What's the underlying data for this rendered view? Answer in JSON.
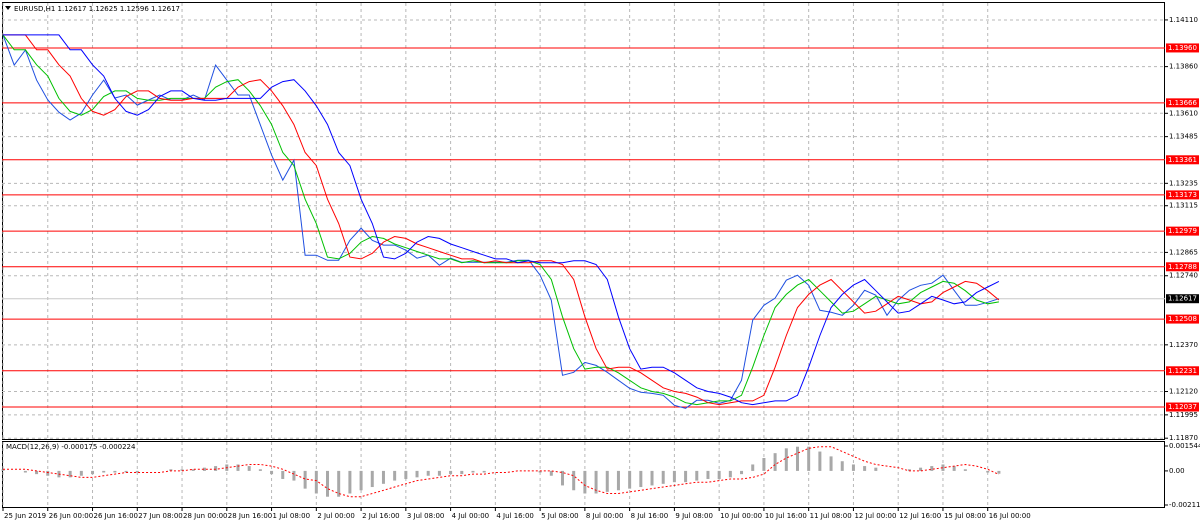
{
  "chart_data": [
    {
      "type": "line",
      "title": "EURUSD,H1  1.12617 1.12625 1.12596 1.12617",
      "categories": [
        "25 Jun 2019",
        null,
        null,
        null,
        "26 Jun 00:00",
        null,
        null,
        null,
        "26 Jun 16:00",
        null,
        null,
        null,
        "27 Jun 08:00",
        null,
        null,
        null,
        "28 Jun 00:00",
        null,
        null,
        null,
        "28 Jun 16:00",
        null,
        null,
        null,
        "1 Jul 08:00",
        null,
        null,
        null,
        "2 Jul 00:00",
        null,
        null,
        null,
        "2 Jul 16:00",
        null,
        null,
        null,
        "3 Jul 08:00",
        null,
        null,
        null,
        "4 Jul 00:00",
        null,
        null,
        null,
        "4 Jul 16:00",
        null,
        null,
        null,
        "5 Jul 08:00",
        null,
        null,
        null,
        "8 Jul 00:00",
        null,
        null,
        null,
        "8 Jul 16:00",
        null,
        null,
        null,
        "9 Jul 08:00",
        null,
        null,
        null,
        "10 Jul 00:00",
        null,
        null,
        null,
        "10 Jul 16:00",
        null,
        null,
        null,
        "11 Jul 08:00",
        null,
        null,
        null,
        "12 Jul 00:00",
        null,
        null,
        null,
        "12 Jul 16:00",
        null,
        null,
        null,
        "15 Jul 08:00",
        null,
        null,
        null,
        "16 Jul 00:00",
        null
      ],
      "series": [
        {
          "color": "#1f4fe0",
          "values": [
            1.14029,
            1.13868,
            1.13949,
            1.13788,
            1.13681,
            1.13616,
            1.13574,
            1.13611,
            1.13708,
            1.13788,
            1.13692,
            1.13708,
            1.13654,
            1.13681,
            1.13708,
            1.13681,
            1.13681,
            1.13708,
            1.13681,
            1.13868,
            1.13788,
            1.13708,
            1.13708,
            1.13547,
            1.13386,
            1.13252,
            1.13359,
            1.1285,
            1.1285,
            1.12823,
            1.12823,
            1.1293,
            1.12995,
            1.1293,
            1.12904,
            1.12904,
            1.12877,
            1.12834,
            1.1285,
            1.12796,
            1.12834,
            1.12812,
            1.12812,
            1.12812,
            1.12812,
            1.12812,
            1.12823,
            1.12823,
            1.12743,
            1.12609,
            1.12207,
            1.12223,
            1.12276,
            1.1226,
            1.12223,
            1.1218,
            1.12137,
            1.12116,
            1.1211,
            1.121,
            1.12046,
            1.1203,
            1.12073,
            1.12073,
            1.12057,
            1.12073,
            1.1218,
            1.12502,
            1.12582,
            1.1262,
            1.12716,
            1.12743,
            1.12689,
            1.12555,
            1.12544,
            1.12528,
            1.12582,
            1.12662,
            1.12636,
            1.12528,
            1.12609,
            1.12662,
            1.12689,
            1.127,
            1.12743,
            1.12662,
            1.12582,
            1.12582,
            1.12598,
            1.12617
          ]
        },
        {
          "color": "#00c000",
          "values": [
            1.1403,
            1.1395,
            1.1395,
            1.1387,
            1.1381,
            1.1369,
            1.1362,
            1.136,
            1.1363,
            1.137,
            1.1373,
            1.1373,
            1.1369,
            1.1368,
            1.1368,
            1.1369,
            1.1369,
            1.1369,
            1.1369,
            1.1375,
            1.1378,
            1.1379,
            1.1373,
            1.1365,
            1.1355,
            1.134,
            1.1333,
            1.1315,
            1.1302,
            1.1284,
            1.1283,
            1.1286,
            1.1292,
            1.1295,
            1.1294,
            1.1291,
            1.1289,
            1.1287,
            1.1285,
            1.1283,
            1.1283,
            1.1281,
            1.1282,
            1.1281,
            1.1281,
            1.1281,
            1.1282,
            1.1282,
            1.128,
            1.1272,
            1.1252,
            1.1235,
            1.1224,
            1.1225,
            1.1225,
            1.1222,
            1.1218,
            1.1214,
            1.1212,
            1.1211,
            1.1209,
            1.1206,
            1.1205,
            1.1206,
            1.1207,
            1.1207,
            1.121,
            1.1225,
            1.1242,
            1.1257,
            1.1264,
            1.1269,
            1.1272,
            1.1266,
            1.126,
            1.1254,
            1.1255,
            1.1259,
            1.1263,
            1.1261,
            1.1259,
            1.126,
            1.1265,
            1.1268,
            1.1271,
            1.127,
            1.1266,
            1.1261,
            1.1259,
            1.126
          ]
        },
        {
          "color": "#ff0000",
          "values": [
            1.1403,
            1.1403,
            1.1403,
            1.1395,
            1.1395,
            1.1387,
            1.1381,
            1.1369,
            1.1362,
            1.136,
            1.1363,
            1.137,
            1.1373,
            1.1373,
            1.1369,
            1.1368,
            1.1368,
            1.1369,
            1.1369,
            1.1369,
            1.1369,
            1.1375,
            1.1378,
            1.1379,
            1.1373,
            1.1365,
            1.1355,
            1.134,
            1.1333,
            1.1315,
            1.1302,
            1.1284,
            1.1283,
            1.1286,
            1.1292,
            1.1295,
            1.1294,
            1.1291,
            1.1289,
            1.1287,
            1.1285,
            1.1283,
            1.1283,
            1.1281,
            1.1282,
            1.1281,
            1.1281,
            1.1281,
            1.1282,
            1.1282,
            1.128,
            1.1272,
            1.1252,
            1.1235,
            1.1224,
            1.1225,
            1.1225,
            1.1222,
            1.1218,
            1.1214,
            1.1212,
            1.1211,
            1.1209,
            1.1206,
            1.1205,
            1.1206,
            1.1207,
            1.1207,
            1.121,
            1.1225,
            1.1242,
            1.1257,
            1.1264,
            1.1269,
            1.1272,
            1.1266,
            1.126,
            1.1254,
            1.1255,
            1.1259,
            1.1263,
            1.1261,
            1.1259,
            1.126,
            1.1265,
            1.1268,
            1.1271,
            1.127,
            1.1266,
            1.1261
          ]
        },
        {
          "color": "#0000ff",
          "values": [
            1.1403,
            1.1403,
            1.1403,
            1.1403,
            1.1403,
            1.1403,
            1.1395,
            1.1395,
            1.1387,
            1.1381,
            1.1369,
            1.1362,
            1.136,
            1.1363,
            1.137,
            1.1373,
            1.1373,
            1.1369,
            1.1368,
            1.1368,
            1.1369,
            1.1369,
            1.1369,
            1.1369,
            1.1375,
            1.1378,
            1.1379,
            1.1373,
            1.1365,
            1.1355,
            1.134,
            1.1333,
            1.1315,
            1.1302,
            1.1284,
            1.1283,
            1.1286,
            1.1292,
            1.1295,
            1.1294,
            1.1291,
            1.1289,
            1.1287,
            1.1285,
            1.1283,
            1.1283,
            1.1281,
            1.1282,
            1.1281,
            1.1281,
            1.1281,
            1.1282,
            1.1282,
            1.128,
            1.1272,
            1.1252,
            1.1235,
            1.1224,
            1.1225,
            1.1225,
            1.1222,
            1.1218,
            1.1214,
            1.1212,
            1.1211,
            1.1209,
            1.1206,
            1.1205,
            1.1206,
            1.1207,
            1.1207,
            1.121,
            1.1225,
            1.1242,
            1.1257,
            1.1264,
            1.1269,
            1.1272,
            1.1266,
            1.126,
            1.1254,
            1.1255,
            1.1259,
            1.1263,
            1.1261,
            1.1259,
            1.126,
            1.1265,
            1.1268,
            1.1271
          ]
        }
      ],
      "ylim": [
        1.11855,
        1.1419
      ],
      "yticks": [
        {
          "value": 1.1411,
          "label": "1.14110"
        },
        {
          "value": 1.1386,
          "label": "1.13860"
        },
        {
          "value": 1.1361,
          "label": "1.13610"
        },
        {
          "value": 1.13485,
          "label": "1.13485"
        },
        {
          "value": 1.13235,
          "label": "1.13235"
        },
        {
          "value": 1.13115,
          "label": "1.13115"
        },
        {
          "value": 1.12865,
          "label": "1.12865"
        },
        {
          "value": 1.1274,
          "label": "1.12740"
        },
        {
          "value": 1.1237,
          "label": "1.12370"
        },
        {
          "value": 1.1212,
          "label": "1.12120"
        },
        {
          "value": 1.11995,
          "label": "1.11995"
        },
        {
          "value": 1.1187,
          "label": "1.11870"
        }
      ],
      "grid": true,
      "levels_color": "#ff0000",
      "levels": [
        {
          "value": 1.1396,
          "label": "1.13960"
        },
        {
          "value": 1.13666,
          "label": "1.13666"
        },
        {
          "value": 1.13361,
          "label": "1.13361"
        },
        {
          "value": 1.13173,
          "label": "1.13173"
        },
        {
          "value": 1.12979,
          "label": "1.12979"
        },
        {
          "value": 1.12788,
          "label": "1.12788"
        },
        {
          "value": 1.12508,
          "label": "1.12508"
        },
        {
          "value": 1.12231,
          "label": "1.12231"
        },
        {
          "value": 1.12037,
          "label": "1.12037"
        }
      ],
      "last_price": {
        "value": 1.12617,
        "label": "1.12617"
      }
    },
    {
      "type": "bar",
      "title": "MACD(12,26,9) -0.000175 -0.000224",
      "color": "#a8a8a8",
      "values": [
        0.0001,
        0,
        -0.0001,
        -0.0002,
        -0.0003,
        -0.0004,
        -0.0004,
        -0.0003,
        -0.0002,
        -0.0001,
        -0.0001,
        -0.0001,
        -0.0001,
        0,
        0,
        0.0001,
        0.0001,
        0.0001,
        0.0002,
        0.0003,
        0.0004,
        0.0004,
        0.0003,
        0.0001,
        -0.0002,
        -0.0005,
        -0.0006,
        -0.0011,
        -0.0014,
        -0.0016,
        -0.0016,
        -0.0014,
        -0.0012,
        -0.001,
        -0.0008,
        -0.0006,
        -0.0005,
        -0.0004,
        -0.0003,
        -0.0003,
        -0.0002,
        -0.0002,
        -0.0001,
        -0.0001,
        0,
        0,
        0,
        0,
        -0.0001,
        -0.0003,
        -0.0009,
        -0.0012,
        -0.0014,
        -0.0014,
        -0.0013,
        -0.0012,
        -0.0011,
        -0.001,
        -0.0009,
        -0.0008,
        -0.0007,
        -0.0007,
        -0.0006,
        -0.0005,
        -0.0005,
        -0.0004,
        -0.0002,
        0.0004,
        0.0008,
        0.0011,
        0.0014,
        0.0015,
        0.0015,
        0.0012,
        0.0009,
        0.0006,
        0.0004,
        0.0003,
        0.0002,
        0,
        0,
        0.0001,
        0.0002,
        0.0003,
        0.0004,
        0.0003,
        0.0001,
        0,
        -0.0001,
        -0.000175
      ],
      "signal": {
        "color": "#ff0000",
        "values": [
          0.0001,
          0.0001,
          0.0001,
          0,
          -0.0001,
          -0.0002,
          -0.0003,
          -0.0004,
          -0.0004,
          -0.0003,
          -0.0002,
          -0.0001,
          -0.0001,
          -0.0001,
          -0.0001,
          0,
          0,
          0.0001,
          0.0001,
          0.0001,
          0.0002,
          0.0003,
          0.0004,
          0.0004,
          0.0003,
          0.0001,
          -0.0002,
          -0.0005,
          -0.0006,
          -0.0011,
          -0.0014,
          -0.0016,
          -0.0016,
          -0.0014,
          -0.0012,
          -0.001,
          -0.0008,
          -0.0006,
          -0.0005,
          -0.0004,
          -0.0003,
          -0.0003,
          -0.0002,
          -0.0002,
          -0.0001,
          -0.0001,
          0,
          0,
          0,
          0,
          -0.0001,
          -0.0003,
          -0.0009,
          -0.0012,
          -0.0014,
          -0.0014,
          -0.0013,
          -0.0012,
          -0.0011,
          -0.001,
          -0.0009,
          -0.0008,
          -0.0007,
          -0.0007,
          -0.0006,
          -0.0005,
          -0.0005,
          -0.0004,
          -0.0002,
          0.0004,
          0.0008,
          0.0011,
          0.0014,
          0.0015,
          0.0015,
          0.0012,
          0.0009,
          0.0006,
          0.0004,
          0.0003,
          0.0002,
          0,
          0,
          0.0001,
          0.0002,
          0.0003,
          0.0004,
          0.0003,
          0.0001,
          -0.000224
        ]
      },
      "ylim": [
        -0.002114,
        0.001544
      ],
      "yticks": [
        0.001544,
        {
          "value": 0,
          "label": "0.00"
        },
        -0.002114
      ]
    }
  ]
}
